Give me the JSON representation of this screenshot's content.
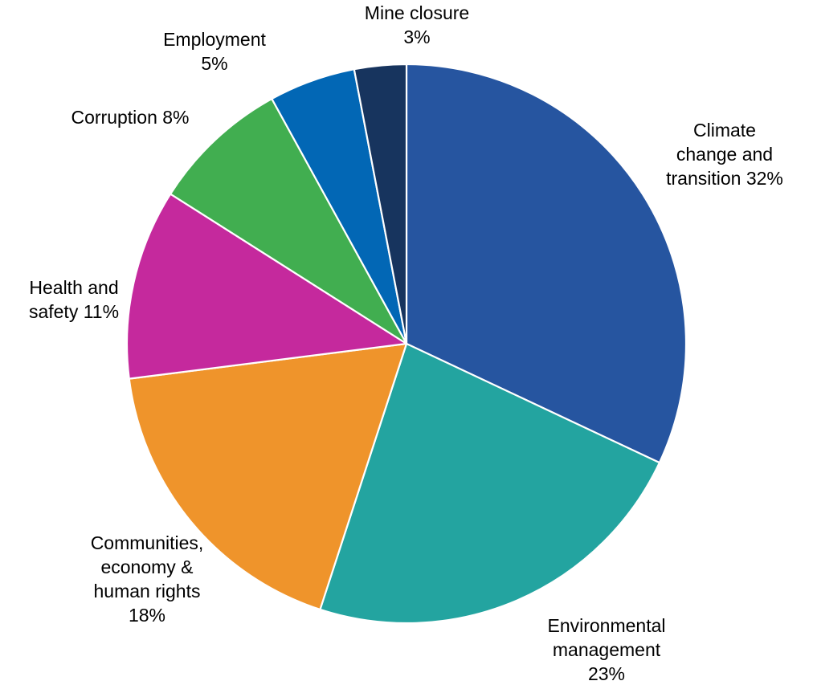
{
  "chart_data": {
    "type": "pie",
    "title": "",
    "slices": [
      {
        "label_lines": [
          "Climate",
          "change and",
          "transition 32%"
        ],
        "value": 32,
        "color": "#2655A0"
      },
      {
        "label_lines": [
          "Environmental",
          "management",
          "23%"
        ],
        "value": 23,
        "color": "#23A4A0"
      },
      {
        "label_lines": [
          "Communities,",
          "economy &",
          "human rights",
          "18%"
        ],
        "value": 18,
        "color": "#EF942B"
      },
      {
        "label_lines": [
          "Health and",
          "safety 11%"
        ],
        "value": 11,
        "color": "#C5299D"
      },
      {
        "label_lines": [
          "Corruption 8%"
        ],
        "value": 8,
        "color": "#41AE50"
      },
      {
        "label_lines": [
          "Employment",
          "5%"
        ],
        "value": 5,
        "color": "#0267B5"
      },
      {
        "label_lines": [
          "Mine closure",
          "3%"
        ],
        "value": 3,
        "color": "#17345E"
      }
    ]
  }
}
